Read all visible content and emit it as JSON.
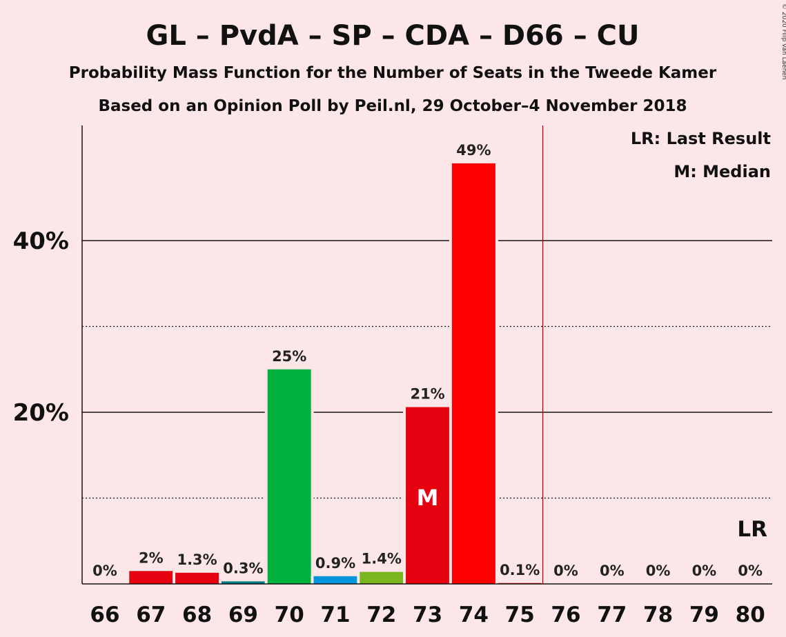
{
  "title": "GL – PvdA – SP – CDA – D66 – CU",
  "subtitle1": "Probability Mass Function for the Number of Seats in the Tweede Kamer",
  "subtitle2": "Based on an Opinion Poll by Peil.nl, 29 October–4 November 2018",
  "copyright": "© 2020 Filip van Laenen",
  "legend": {
    "last_result": "LR: Last Result",
    "median": "M: Median"
  },
  "chart_data": {
    "type": "bar",
    "categories": [
      "66",
      "67",
      "68",
      "69",
      "70",
      "71",
      "72",
      "73",
      "74",
      "75",
      "76",
      "77",
      "78",
      "79",
      "80"
    ],
    "values": [
      0,
      1.5,
      1.3,
      0.3,
      25,
      0.9,
      1.4,
      20.6,
      49,
      0.1,
      0,
      0,
      0,
      0,
      0
    ],
    "data_labels": [
      "0%",
      "2%",
      "1.3%",
      "0.3%",
      "25%",
      "0.9%",
      "1.4%",
      "21%",
      "49%",
      "0.1%",
      "0%",
      "0%",
      "0%",
      "0%",
      "0%"
    ],
    "colors": [
      "#00b140",
      "#e4000f",
      "#e4000f",
      "#008080",
      "#00b140",
      "#0095dc",
      "#7ab51d",
      "#e4000f",
      "#ff0000",
      "#ff0000",
      "#ff0000",
      "#ff0000",
      "#ff0000",
      "#ff0000",
      "#ff0000"
    ],
    "y_ticks": [
      {
        "value": 20,
        "label": "20%"
      },
      {
        "value": 40,
        "label": "40%"
      }
    ],
    "minor_gridlines": [
      10,
      30
    ],
    "ylim": [
      0,
      53
    ],
    "median": {
      "category": "73",
      "label": "M"
    },
    "last_result": {
      "category": "80",
      "label": "LR"
    },
    "majority_line_after": "75",
    "grid": true,
    "legend_position": "top-right"
  }
}
